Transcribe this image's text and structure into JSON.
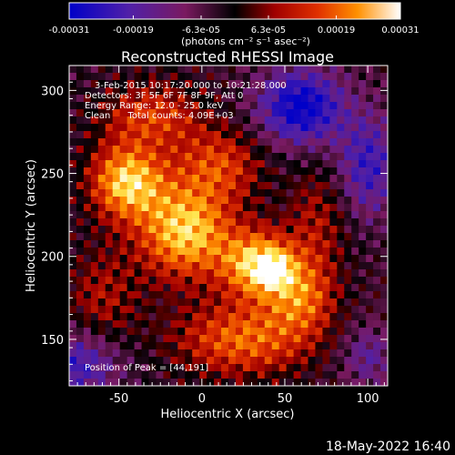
{
  "chart_data": {
    "type": "heatmap",
    "title": "Reconstructed RHESSI Image",
    "xlabel": "Heliocentric X (arcsec)",
    "ylabel": "Heliocentric Y (arcsec)",
    "xlim": [
      -80,
      112
    ],
    "ylim": [
      122,
      315
    ],
    "xticks": [
      -50,
      0,
      50,
      100
    ],
    "yticks": [
      150,
      200,
      250,
      300
    ],
    "colorbar": {
      "tick_labels": [
        "-0.00031",
        "-0.00019",
        "-6.3e-05",
        "6.3e-05",
        "0.00019",
        "0.00031"
      ],
      "tick_values": [
        -0.00031,
        -0.00019,
        -6.3e-05,
        6.3e-05,
        0.00019,
        0.00031
      ],
      "range": [
        -0.00031,
        0.00031
      ],
      "units_label": "(photons cm⁻² s⁻¹ asec⁻²)"
    },
    "annotations": [
      "3-Feb-2015 10:17:20.000 to 10:21:28.000",
      "Detectors: 3F 5F 6F 7F 8F 9F, Att 0",
      "Energy Range: 12.0 - 25.0 keV",
      "Clean      Total counts: 4.09E+03",
      "Position of Peak = [44,191]"
    ],
    "peak": [
      44,
      191
    ],
    "grid": false
  },
  "timestamp": "18-May-2022 16:40"
}
